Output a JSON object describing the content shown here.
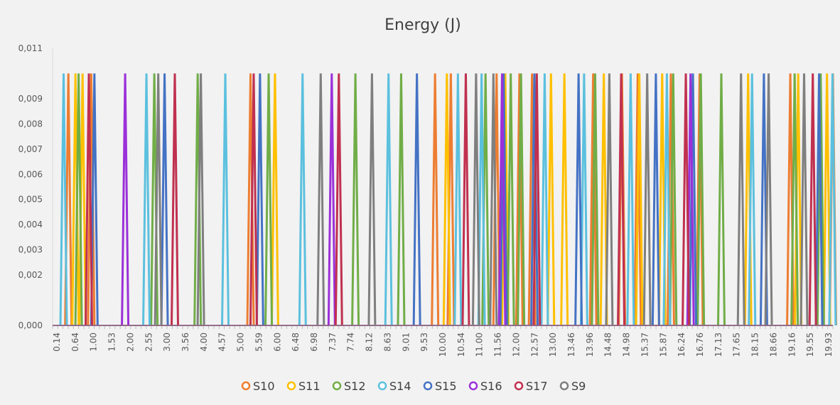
{
  "chart_data": {
    "type": "line",
    "title": "Energy (J)",
    "xlabel": "",
    "ylabel": "",
    "ylim": [
      0,
      0.011
    ],
    "xlim": [
      0.14,
      19.93
    ],
    "y_ticks": [
      "0,000",
      "0,002",
      "0,003",
      "0,004",
      "0,005",
      "0,006",
      "0,007",
      "0,008",
      "0,009",
      "0,011"
    ],
    "y_tick_values": [
      0,
      0.002,
      0.003,
      0.004,
      0.005,
      0.006,
      0.007,
      0.008,
      0.009,
      0.011
    ],
    "x_ticks": [
      "0.14",
      "0.64",
      "1.00",
      "1.53",
      "2.00",
      "2.55",
      "3.00",
      "3.56",
      "4.00",
      "4.57",
      "5.00",
      "5.59",
      "6.00",
      "6.48",
      "6.98",
      "7.37",
      "7.74",
      "8.12",
      "8.63",
      "9.01",
      "9.53",
      "10.00",
      "10.54",
      "11.00",
      "11.56",
      "12.00",
      "12.57",
      "13.00",
      "13.46",
      "13.96",
      "14.48",
      "14.98",
      "15.37",
      "15.87",
      "16.24",
      "16.76",
      "17.13",
      "17.65",
      "18.15",
      "18.66",
      "19.16",
      "19.55",
      "19.93"
    ],
    "grid": false,
    "legend_position": "bottom",
    "peak_value": 0.01,
    "baseline_value": 0,
    "series": [
      {
        "name": "S10",
        "color": "#ED7D31",
        "peaks": [
          0.54,
          1.12,
          5.16,
          9.84,
          10.24,
          11.4,
          11.98,
          12.3,
          13.85,
          14.58,
          14.98,
          15.82,
          16.55,
          18.85,
          19.93
        ]
      },
      {
        "name": "S11",
        "color": "#FFC000",
        "peaks": [
          0.72,
          0.9,
          5.78,
          10.14,
          11.62,
          12.78,
          13.12,
          14.12,
          15.02,
          15.6,
          17.78,
          19.05,
          19.78
        ]
      },
      {
        "name": "S12",
        "color": "#70AD47",
        "peaks": [
          0.8,
          2.72,
          3.82,
          5.62,
          7.82,
          8.98,
          11.12,
          11.76,
          12.02,
          13.9,
          15.88,
          16.58,
          17.1,
          18.96,
          19.62
        ]
      },
      {
        "name": "S14",
        "color": "#5BC0DE",
        "peaks": [
          0.42,
          2.52,
          4.52,
          6.48,
          8.66,
          10.42,
          11.02,
          12.62,
          13.62,
          14.8,
          15.72,
          17.88,
          19.92
        ]
      },
      {
        "name": "S15",
        "color": "#4472C4",
        "peaks": [
          1.2,
          2.98,
          5.4,
          9.38,
          11.58,
          12.36,
          13.48,
          15.44,
          16.38,
          18.18,
          19.58
        ]
      },
      {
        "name": "S16",
        "color": "#9B30D9",
        "peaks": [
          1.98,
          7.22,
          11.54,
          16.32
        ]
      },
      {
        "name": "S17",
        "color": "#C0304F",
        "peaks": [
          1.06,
          3.24,
          5.24,
          7.4,
          10.62,
          12.42,
          14.56,
          16.2,
          19.42
        ]
      },
      {
        "name": "S9",
        "color": "#7F7F7F",
        "peaks": [
          2.82,
          3.9,
          6.94,
          8.24,
          10.88,
          11.32,
          14.26,
          15.22,
          17.6,
          18.3,
          19.2
        ]
      }
    ]
  }
}
